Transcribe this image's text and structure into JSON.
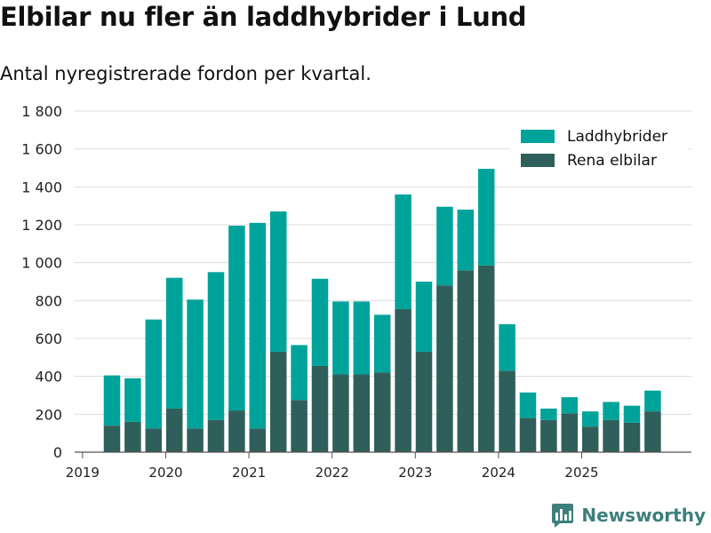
{
  "title": "Elbilar nu fler än laddhybrider i Lund",
  "subtitle": "Antal nyregistrerade fordon per kvartal.",
  "brand": {
    "name": "Newsworthy",
    "icon": "newsworthy-logo-icon"
  },
  "chart_data": {
    "type": "bar",
    "stacked": true,
    "ylim": [
      0,
      1800
    ],
    "yticks": [
      0,
      200,
      400,
      600,
      800,
      1000,
      1200,
      1400,
      1600,
      1800
    ],
    "ytick_labels": [
      "0",
      "200",
      "400",
      "600",
      "800",
      "1 000",
      "1 200",
      "1 400",
      "1 600",
      "1 800"
    ],
    "xticks": [
      "2019",
      "2020",
      "2021",
      "2022",
      "2023",
      "2024",
      "2025"
    ],
    "xtick_first_quarter_index": 0,
    "categories": [
      "2019 Q2",
      "2019 Q3",
      "2019 Q4",
      "2020 Q1",
      "2020 Q2",
      "2020 Q3",
      "2020 Q4",
      "2021 Q1",
      "2021 Q2",
      "2021 Q3",
      "2021 Q4",
      "2022 Q1",
      "2022 Q2",
      "2022 Q3",
      "2022 Q4",
      "2023 Q1",
      "2023 Q2",
      "2023 Q3",
      "2023 Q4",
      "2024 Q1",
      "2024 Q2",
      "2024 Q3",
      "2024 Q4",
      "2025 Q1",
      "2025 Q2",
      "2025 Q3",
      "2025 Q4"
    ],
    "legend_position": "top-right",
    "series": [
      {
        "name": "Rena elbilar",
        "color": "#2f5f5a",
        "values": [
          140,
          160,
          125,
          230,
          125,
          170,
          220,
          125,
          530,
          275,
          455,
          410,
          410,
          420,
          755,
          530,
          880,
          960,
          985,
          430,
          180,
          170,
          205,
          135,
          170,
          155,
          215
        ]
      },
      {
        "name": "Laddhybrider",
        "color": "#00a39a",
        "values": [
          265,
          230,
          575,
          690,
          680,
          780,
          975,
          1085,
          740,
          290,
          460,
          385,
          385,
          305,
          605,
          370,
          415,
          320,
          510,
          245,
          135,
          60,
          85,
          80,
          95,
          90,
          110
        ]
      }
    ],
    "legend_order": [
      "Laddhybrider",
      "Rena elbilar"
    ]
  }
}
